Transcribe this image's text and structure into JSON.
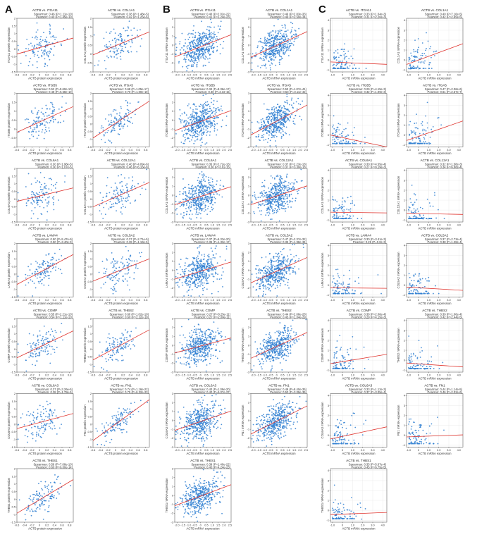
{
  "panels": [
    {
      "letter": "A",
      "xlabel": "ACTB protein expression",
      "xlim": [
        -0.6,
        0.9
      ],
      "xticks": [
        -0.6,
        -0.4,
        -0.2,
        0.0,
        0.2,
        0.4,
        0.6,
        0.8
      ],
      "xtick_labels": [
        "-0.6",
        "-0.4",
        "-0.2",
        "0",
        "0.2",
        "0.4",
        "0.6",
        "0.8"
      ],
      "grid": false
    },
    {
      "letter": "B",
      "xlabel": "ACTB mRNA expression",
      "xlim": [
        -2.2,
        2.6
      ],
      "xticks": [
        -2.0,
        -1.5,
        -1.0,
        -0.5,
        0.0,
        0.5,
        1.0,
        1.5,
        2.0,
        2.5
      ],
      "xtick_labels": [
        "-2.0",
        "-1.5",
        "-1.0",
        "-0.5",
        "0",
        "0.5",
        "1.0",
        "1.5",
        "2.0",
        "2.5"
      ],
      "grid": false
    },
    {
      "letter": "C",
      "xlabel": "ACTB mRNA expression",
      "xlim": [
        -1.2,
        4.4
      ],
      "xticks": [
        -1.0,
        0.0,
        1.0,
        2.0,
        3.0,
        4.0
      ],
      "xtick_labels": [
        "-1.0",
        "0",
        "1.0",
        "2.0",
        "3.0",
        "4.0"
      ],
      "grid": true
    }
  ],
  "chart_data": [
    {
      "panel": "A",
      "type": "scatter",
      "title": "ACTB vs. ITGA11",
      "ylabel": "ITGA11 protein expression",
      "stat1": "Spearman: 0.46 (P=1.11e-10)",
      "stat2": "Pearson: 0.40 (P=1.45e-10)",
      "ylim": [
        -1.5,
        2.0
      ],
      "yticks": [
        -1.5,
        -1.0,
        -0.5,
        0,
        0.5,
        1.0,
        1.5,
        2.0
      ],
      "r": 0.4,
      "n": 120,
      "floor": false
    },
    {
      "panel": "A",
      "type": "scatter",
      "title": "ACTB vs. COL1A1",
      "ylabel": "COL1A1 protein expression",
      "stat1": "Spearman: 0.38 (P=1.48e-5)",
      "stat2": "Pearson: 0.42 (P=1.25e-6)",
      "ylim": [
        -1.0,
        2.0
      ],
      "yticks": [
        -1.0,
        -0.5,
        0,
        0.5,
        1.0,
        1.5,
        2.0
      ],
      "r": 0.42,
      "n": 120,
      "floor": false
    },
    {
      "panel": "A",
      "type": "scatter",
      "title": "ACTB vs. ITGB5",
      "ylabel": "ITGB5 protein expression",
      "stat1": "Spearman: 0.52 (P=9.60e-10)",
      "stat2": "Pearson: 0.48 (P=5.58e-10)",
      "ylim": [
        -1.0,
        2.0
      ],
      "yticks": [
        -1.0,
        -0.5,
        0,
        0.5,
        1.0,
        1.5,
        2.0
      ],
      "r": 0.5,
      "n": 120,
      "floor": false
    },
    {
      "panel": "A",
      "type": "scatter",
      "title": "ACTB vs. ITGA5",
      "ylabel": "ITGA5 protein expression",
      "stat1": "Spearman: 0.68 (P=1.05e-17)",
      "stat2": "Pearson: 0.70 (P=1.00e-19)",
      "ylim": [
        -1.5,
        2.0
      ],
      "yticks": [
        -1.5,
        -1.0,
        -0.5,
        0,
        0.5,
        1.0,
        1.5,
        2.0
      ],
      "r": 0.7,
      "n": 120,
      "floor": false
    },
    {
      "panel": "A",
      "type": "scatter",
      "title": "ACTB vs. COL6A1",
      "ylabel": "COL6A1 protein expression",
      "stat1": "Spearman: 0.30 (P=1.98e-5)",
      "stat2": "Pearson: 0.30 (P=1.07e-5)",
      "ylim": [
        -1.5,
        2.0
      ],
      "yticks": [
        -1.5,
        -1.0,
        -0.5,
        0,
        0.5,
        1.0,
        1.5,
        2.0
      ],
      "r": 0.3,
      "n": 120,
      "floor": false
    },
    {
      "panel": "A",
      "type": "scatter",
      "title": "ACTB vs. COL12A1",
      "ylabel": "COL12A1 protein expression",
      "stat1": "Spearman: 0.40 (P=4.09e-6)",
      "stat2": "Pearson: 0.46 (P=6.16e-8)",
      "ylim": [
        -1.5,
        2.0
      ],
      "yticks": [
        -1.5,
        -1.0,
        -0.5,
        0,
        0.5,
        1.0,
        1.5,
        2.0
      ],
      "r": 0.46,
      "n": 120,
      "floor": false
    },
    {
      "panel": "A",
      "type": "scatter",
      "title": "ACTB vs. LAMA4",
      "ylabel": "LAMA4 protein expression",
      "stat1": "Spearman: 0.50 (P=5.47e-9)",
      "stat2": "Pearson: 0.50 (P=3.40e-9)",
      "ylim": [
        -1.5,
        2.0
      ],
      "yticks": [
        -1.5,
        -1.0,
        -0.5,
        0,
        0.5,
        1.0,
        1.5,
        2.0
      ],
      "r": 0.5,
      "n": 120,
      "floor": false
    },
    {
      "panel": "A",
      "type": "scatter",
      "title": "ACTB vs. COL5A2",
      "ylabel": "COL5A2 protein expression",
      "stat1": "Spearman: 0.37 (P=2.71e-5)",
      "stat2": "Pearson: 0.39 (P=1.19e-5)",
      "ylim": [
        -1.5,
        2.0
      ],
      "yticks": [
        -1.5,
        -1.0,
        -0.5,
        0,
        0.5,
        1.0,
        1.5,
        2.0
      ],
      "r": 0.38,
      "n": 120,
      "floor": false
    },
    {
      "panel": "A",
      "type": "scatter",
      "title": "ACTB vs. COMP",
      "ylabel": "COMP protein expression",
      "stat1": "Spearman: 0.55 (P=2.21e-10)",
      "stat2": "Pearson: 0.54 (P=1.11e-10)",
      "ylim": [
        -1.5,
        2.0
      ],
      "yticks": [
        -1.5,
        -1.0,
        -0.5,
        0,
        0.5,
        1.0,
        1.5,
        2.0
      ],
      "r": 0.55,
      "n": 120,
      "floor": false
    },
    {
      "panel": "A",
      "type": "scatter",
      "title": "ACTB vs. THBS2",
      "ylabel": "THBS2 protein expression",
      "stat1": "Spearman: 0.60 (P=1.02e-19)",
      "stat2": "Pearson: 0.60 (P=2.22e-19)",
      "ylim": [
        -1.5,
        2.0
      ],
      "yticks": [
        -1.5,
        -1.0,
        -0.5,
        0,
        0.5,
        1.0,
        1.5,
        2.0
      ],
      "r": 0.6,
      "n": 120,
      "floor": false
    },
    {
      "panel": "A",
      "type": "scatter",
      "title": "ACTB vs. COL6A3",
      "ylabel": "COL6A3 protein expression",
      "stat1": "Spearman: 0.37 (P=3.26e-5)",
      "stat2": "Pearson: 0.38 (P=1.78e-5)",
      "ylim": [
        -1.5,
        2.0
      ],
      "yticks": [
        -1.5,
        -1.0,
        -0.5,
        0,
        0.5,
        1.0,
        1.5,
        2.0
      ],
      "r": 0.38,
      "n": 120,
      "floor": false
    },
    {
      "panel": "A",
      "type": "scatter",
      "title": "ACTB vs. FN1",
      "ylabel": "FN1 protein expression",
      "stat1": "Spearman: 0.74 (P=1.16e-22)",
      "stat2": "Pearson: 0.75 (P=6.32e-23)",
      "ylim": [
        -1.5,
        2.0
      ],
      "yticks": [
        -1.5,
        -1.0,
        -0.5,
        0,
        0.5,
        1.0,
        1.5,
        2.0
      ],
      "r": 0.75,
      "n": 120,
      "floor": false
    },
    {
      "panel": "A",
      "type": "scatter",
      "title": "ACTB vs. THBS1",
      "ylabel": "THBS1 protein expression",
      "stat1": "Spearman: 0.59 (P=7.08e-10)",
      "stat2": "Pearson: 0.60 (P=6.00e-14)",
      "ylim": [
        -1.5,
        2.0
      ],
      "yticks": [
        -1.5,
        -1.0,
        -0.5,
        0,
        0.5,
        1.0,
        1.5,
        2.0
      ],
      "r": 0.6,
      "n": 120,
      "floor": false
    },
    {
      "panel": "B",
      "type": "scatter",
      "title": "ACTB vs. ITGA11",
      "ylabel": "ITGA11 mRNA expression",
      "stat1": "Spearman: 0.40 (P=2.02e-22)",
      "stat2": "Pearson: 0.41 (P=1.24e-23)",
      "ylim": [
        -3,
        3
      ],
      "yticks": [
        -3,
        -2,
        -1,
        0,
        1,
        2,
        3
      ],
      "r": 0.41,
      "n": 420,
      "floor": false
    },
    {
      "panel": "B",
      "type": "scatter",
      "title": "ACTB vs. COL1A1",
      "ylabel": "COL1A1 mRNA expression",
      "stat1": "Spearman: 0.46 (P=2.83e-33)",
      "stat2": "Pearson: 0.49 (P=2.50e-34)",
      "ylim": [
        -3,
        3
      ],
      "yticks": [
        -3,
        -2,
        -1,
        0,
        1,
        2,
        3
      ],
      "r": 0.49,
      "n": 420,
      "floor": false
    },
    {
      "panel": "B",
      "type": "scatter",
      "title": "ACTB vs. ITGB5",
      "ylabel": "ITGB5 mRNA expression",
      "stat1": "Spearman: 0.34 (P=8.36e-17)",
      "stat2": "Pearson: 0.30 (P=2.32-15)",
      "ylim": [
        -3,
        3
      ],
      "yticks": [
        -3,
        -2,
        -1,
        0,
        1,
        2,
        3
      ],
      "r": 0.32,
      "n": 420,
      "floor": false
    },
    {
      "panel": "B",
      "type": "scatter",
      "title": "ACTB vs. ITGA5",
      "ylabel": "ITGA5 mRNA expression",
      "stat1": "Spearman: 0.53 (P=1.07e-41)",
      "stat2": "Pearson: 0.53 (P=3.11e-42)",
      "ylim": [
        -3,
        3
      ],
      "yticks": [
        -3,
        -2,
        -1,
        0,
        1,
        2,
        3
      ],
      "r": 0.53,
      "n": 420,
      "floor": false
    },
    {
      "panel": "B",
      "type": "scatter",
      "title": "ACTB vs. COL6A1",
      "ylabel": "COL6A1 mRNA expression",
      "stat1": "Spearman: 0.35 (P=2.72e-16)",
      "stat2": "Pearson: 0.30 (P=3.02-15)",
      "ylim": [
        -3,
        3
      ],
      "yticks": [
        -3,
        -2,
        -1,
        0,
        1,
        2,
        3
      ],
      "r": 0.32,
      "n": 420,
      "floor": false
    },
    {
      "panel": "B",
      "type": "scatter",
      "title": "ACTB vs. COL12A1",
      "ylabel": "COL12A1 mRNA expression",
      "stat1": "Spearman: 0.37 (P=2.23e-18)",
      "stat2": "Pearson: 0.37 (P=3.30e-18)",
      "ylim": [
        -3,
        3
      ],
      "yticks": [
        -3,
        -2,
        -1,
        0,
        1,
        2,
        3
      ],
      "r": 0.37,
      "n": 420,
      "floor": false
    },
    {
      "panel": "B",
      "type": "scatter",
      "title": "ACTB vs. LAMA4",
      "ylabel": "LAMA4 mRNA expression",
      "stat1": "Spearman: 0.37 (P=6.33e-20)",
      "stat2": "Pearson: 0.35 (P=1.33e-17)",
      "ylim": [
        -3,
        3
      ],
      "yticks": [
        -3,
        -2,
        -1,
        0,
        1,
        2,
        3
      ],
      "r": 0.36,
      "n": 420,
      "floor": false
    },
    {
      "panel": "B",
      "type": "scatter",
      "title": "ACTB vs. COL5A2",
      "ylabel": "COL5A2 mRNA expression",
      "stat1": "Spearman: 0.47 (P=2.37e-32)",
      "stat2": "Pearson: 0.35 (P=1.98e-34)",
      "ylim": [
        -3,
        3
      ],
      "yticks": [
        -3,
        -2,
        -1,
        0,
        1,
        2,
        3
      ],
      "r": 0.42,
      "n": 420,
      "floor": false
    },
    {
      "panel": "B",
      "type": "scatter",
      "title": "ACTB vs. COMP",
      "ylabel": "COMP mRNA expression",
      "stat1": "Spearman: 0.27 (P=8.25e-11)",
      "stat2": "Pearson: 0.27 (P=2.08e-11)",
      "ylim": [
        -3,
        3
      ],
      "yticks": [
        -3,
        -2,
        -1,
        0,
        1,
        2,
        3
      ],
      "r": 0.27,
      "n": 420,
      "floor": false
    },
    {
      "panel": "B",
      "type": "scatter",
      "title": "ACTB vs. THBS2",
      "ylabel": "THBS2 mRNA expression",
      "stat1": "Spearman: 0.44 (P=2.08e-28)",
      "stat2": "Pearson: 0.45 (P=1.04e-29)",
      "ylim": [
        -3,
        3
      ],
      "yticks": [
        -3,
        -2,
        -1,
        0,
        1,
        2,
        3
      ],
      "r": 0.45,
      "n": 420,
      "floor": false
    },
    {
      "panel": "B",
      "type": "scatter",
      "title": "ACTB vs. COL6A3",
      "ylabel": "COL6A3 mRNA expression",
      "stat1": "Spearman: 0.40 (P=1.09e-20)",
      "stat2": "Pearson: 0.40 (P=6.07e-27)",
      "ylim": [
        -3,
        3
      ],
      "yticks": [
        -3,
        -2,
        -1,
        0,
        1,
        2,
        3
      ],
      "r": 0.4,
      "n": 420,
      "floor": false
    },
    {
      "panel": "B",
      "type": "scatter",
      "title": "ACTB vs. FN1",
      "ylabel": "FN1 mRNA expression",
      "stat1": "Spearman: 0.49 (P=8.40e-35)",
      "stat2": "Pearson: 0.50 (P=3.09e-36)",
      "ylim": [
        -3,
        3
      ],
      "yticks": [
        -3,
        -2,
        -1,
        0,
        1,
        2,
        3
      ],
      "r": 0.5,
      "n": 420,
      "floor": false
    },
    {
      "panel": "B",
      "type": "scatter",
      "title": "ACTB vs. THBS1",
      "ylabel": "THBS1 mRNA expression",
      "stat1": "Spearman: 0.39 (P=1.40e-22)",
      "stat2": "Pearson: 0.40 (P=4.24e-23)",
      "ylim": [
        -3,
        3
      ],
      "yticks": [
        -3,
        -2,
        -1,
        0,
        1,
        2,
        3
      ],
      "r": 0.4,
      "n": 420,
      "floor": false
    },
    {
      "panel": "C",
      "type": "scatter",
      "title": "ACTB vs. ITGA11",
      "ylabel": "ITGA11 mRNA expression",
      "stat1": "Spearman: 0.33 (P=1.04e-3)",
      "stat2": "Pearson: 0.31 (P=2.20e-3)",
      "ylim": [
        -1.2,
        4.2
      ],
      "yticks": [
        -1,
        0,
        1,
        2,
        3,
        4
      ],
      "r": 0.32,
      "n": 95,
      "floor": true
    },
    {
      "panel": "C",
      "type": "scatter",
      "title": "ACTB vs. COL1A1",
      "ylabel": "COL1A1 mRNA expression",
      "stat1": "Spearman: 0.40 (P=7.16e-5)",
      "stat2": "Pearson: 0.42 (P=2.95e-5)",
      "ylim": [
        -1.2,
        4.2
      ],
      "yticks": [
        -1,
        0,
        1,
        2,
        3,
        4
      ],
      "r": 0.42,
      "n": 95,
      "floor": true
    },
    {
      "panel": "C",
      "type": "scatter",
      "title": "ACTB vs. ITGB5",
      "ylabel": "ITGB5 mRNA expression",
      "stat1": "Spearman: 0.29 (P=4.15e-3)",
      "stat2": "Pearson: 0.32 (P=1.09e-3)",
      "ylim": [
        -1.2,
        4.2
      ],
      "yticks": [
        -1,
        0,
        1,
        2,
        3,
        4
      ],
      "r": 0.3,
      "n": 95,
      "floor": true
    },
    {
      "panel": "C",
      "type": "scatter",
      "title": "ACTB vs. ITGA5",
      "ylabel": "ITGA5 mRNA expression",
      "stat1": "Spearman: 0.47 (P=2.06e-6)",
      "stat2": "Pearson: 0.61 (P=2.57e-7)",
      "ylim": [
        -1.2,
        4.2
      ],
      "yticks": [
        -1,
        0,
        1,
        2,
        3,
        4
      ],
      "r": 0.55,
      "n": 95,
      "floor": true
    },
    {
      "panel": "C",
      "type": "scatter",
      "title": "ACTB vs. COL6A1",
      "ylabel": "COL6A1 mRNA expression",
      "stat1": "Spearman: 0.30 (P=4.55e-4)",
      "stat2": "Pearson: 0.27 (P=8.19e-3)",
      "ylim": [
        -1.2,
        4.2
      ],
      "yticks": [
        -1,
        0,
        1,
        2,
        3,
        4
      ],
      "r": 0.28,
      "n": 95,
      "floor": true
    },
    {
      "panel": "C",
      "type": "scatter",
      "title": "ACTB vs. COL12A1",
      "ylabel": "COL12A1 mRNA expression",
      "stat1": "Spearman: 0.32 (P=1.58e-3)",
      "stat2": "Pearson: 0.34 (P=6.88e-4)",
      "ylim": [
        -1.2,
        4.2
      ],
      "yticks": [
        -1,
        0,
        1,
        2,
        3,
        4
      ],
      "r": 0.34,
      "n": 95,
      "floor": true
    },
    {
      "panel": "C",
      "type": "scatter",
      "title": "ACTB vs. LAMA4",
      "ylabel": "LAMA4 mRNA expression",
      "stat1": "Spearman: 0.30 (P=3.41e-3)",
      "stat2": "Pearson: 0.25 (P=0.0e-3)",
      "ylim": [
        -1.2,
        4.2
      ],
      "yticks": [
        -1,
        0,
        1,
        2,
        3,
        4
      ],
      "r": 0.27,
      "n": 95,
      "floor": true
    },
    {
      "panel": "C",
      "type": "scatter",
      "title": "ACTB vs. COL5A2",
      "ylabel": "COL5A2 mRNA expression",
      "stat1": "Spearman: 0.37 (P=2.73e-4)",
      "stat2": "Pearson: 0.38 (P=1.28e-4)",
      "ylim": [
        -1.2,
        4.2
      ],
      "yticks": [
        -1,
        0,
        1,
        2,
        3,
        4
      ],
      "r": 0.38,
      "n": 95,
      "floor": true
    },
    {
      "panel": "C",
      "type": "scatter",
      "title": "ACTB vs. COMP",
      "ylabel": "COMP mRNA expression",
      "stat1": "Spearman: 0.38 (P=2.06e-4)",
      "stat2": "Pearson: 0.29 (P=4.15e-3)",
      "ylim": [
        -1.2,
        4.2
      ],
      "yticks": [
        -1,
        0,
        1,
        2,
        3,
        4
      ],
      "r": 0.32,
      "n": 95,
      "floor": true
    },
    {
      "panel": "C",
      "type": "scatter",
      "title": "ACTB vs. THBS2",
      "ylabel": "THBS2 mRNA expression",
      "stat1": "Spearman: 0.39 (P=1.06e-4)",
      "stat2": "Pearson: 0.42 (P=2.44e-5)",
      "ylim": [
        -1.2,
        4.2
      ],
      "yticks": [
        -1,
        0,
        1,
        2,
        3,
        4
      ],
      "r": 0.42,
      "n": 95,
      "floor": true
    },
    {
      "panel": "C",
      "type": "scatter",
      "title": "ACTB vs. COL6A3",
      "ylabel": "COL6A3 mRNA expression",
      "stat1": "Spearman: 0.33 (P=1.12e-3)",
      "stat2": "Pearson: 0.37 (P=3.05e-4)",
      "ylim": [
        -1.2,
        4.2
      ],
      "yticks": [
        -1,
        0,
        1,
        2,
        3,
        4
      ],
      "r": 0.36,
      "n": 95,
      "floor": true
    },
    {
      "panel": "C",
      "type": "scatter",
      "title": "ACTB vs. FN1",
      "ylabel": "FN1 mRNA expression",
      "stat1": "Spearman: 0.44 (P=1.14e-5)",
      "stat2": "Pearson: 0.46 (P=2.02e-6)",
      "ylim": [
        -1.2,
        4.2
      ],
      "yticks": [
        -1,
        0,
        1,
        2,
        3,
        4
      ],
      "r": 0.46,
      "n": 95,
      "floor": true
    },
    {
      "panel": "C",
      "type": "scatter",
      "title": "ACTB vs. THBS1",
      "ylabel": "THBS1 mRNA expression",
      "stat1": "Spearman: 0.35 (P=5.07e-4)",
      "stat2": "Pearson: 0.45 (P=6.75e-5)",
      "ylim": [
        -1.2,
        4.2
      ],
      "yticks": [
        -1,
        0,
        1,
        2,
        3,
        4
      ],
      "r": 0.42,
      "n": 95,
      "floor": true
    }
  ]
}
